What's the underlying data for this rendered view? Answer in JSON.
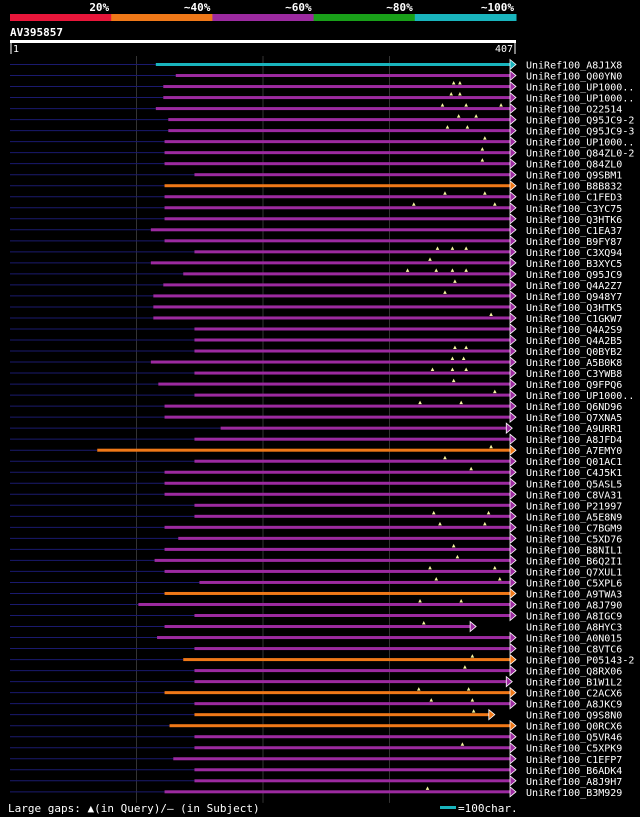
{
  "chart_data": {
    "type": "bar",
    "title": "AV395857",
    "query_start": "1",
    "query_end": "407",
    "query_length": 407,
    "color_legend": [
      {
        "label": "20%",
        "color": "#e8163a"
      },
      {
        "label": "~40%",
        "color": "#ef7818"
      },
      {
        "label": "~60%",
        "color": "#9c2aa0"
      },
      {
        "label": "~80%",
        "color": "#19a019"
      },
      {
        "label": "~100%",
        "color": "#19b4bd"
      }
    ],
    "footer": {
      "gaps_label": "Large gaps: ▲(in Query)/– (in Subject)",
      "scale_label": "=100char."
    },
    "hits": [
      {
        "name": "UniRef100_A8J1X8",
        "start": 118,
        "end": 407,
        "color": "#19b4bd",
        "gaps": []
      },
      {
        "name": "UniRef100_Q00YN0",
        "start": 134,
        "end": 407,
        "color": "#9c2aa0",
        "gaps": []
      },
      {
        "name": "UniRef100_UP1000..",
        "start": 124,
        "end": 407,
        "color": "#9c2aa0",
        "gaps": [
          357,
          362
        ]
      },
      {
        "name": "UniRef100_UP1000..",
        "start": 124,
        "end": 407,
        "color": "#9c2aa0",
        "gaps": [
          355,
          362
        ]
      },
      {
        "name": "UniRef100_O22514",
        "start": 118,
        "end": 407,
        "color": "#9c2aa0",
        "gaps": [
          348,
          367,
          395
        ]
      },
      {
        "name": "UniRef100_Q95JC9-2",
        "start": 128,
        "end": 407,
        "color": "#9c2aa0",
        "gaps": [
          361,
          375
        ]
      },
      {
        "name": "UniRef100_Q95JC9-3",
        "start": 128,
        "end": 407,
        "color": "#9c2aa0",
        "gaps": [
          352,
          368
        ]
      },
      {
        "name": "UniRef100_UP1000..",
        "start": 125,
        "end": 407,
        "color": "#9c2aa0",
        "gaps": [
          382
        ]
      },
      {
        "name": "UniRef100_Q84ZL0-2",
        "start": 125,
        "end": 407,
        "color": "#9c2aa0",
        "gaps": [
          380
        ]
      },
      {
        "name": "UniRef100_Q84ZL0",
        "start": 125,
        "end": 407,
        "color": "#9c2aa0",
        "gaps": [
          380
        ]
      },
      {
        "name": "UniRef100_Q9SBM1",
        "start": 149,
        "end": 407,
        "color": "#9c2aa0",
        "gaps": []
      },
      {
        "name": "UniRef100_B8B832",
        "start": 125,
        "end": 407,
        "color": "#ef7818",
        "gaps": []
      },
      {
        "name": "UniRef100_C1FED3",
        "start": 125,
        "end": 407,
        "color": "#9c2aa0",
        "gaps": [
          350,
          382
        ]
      },
      {
        "name": "UniRef100_C3YC75",
        "start": 125,
        "end": 407,
        "color": "#9c2aa0",
        "gaps": [
          325,
          390
        ]
      },
      {
        "name": "UniRef100_Q3HTK6",
        "start": 125,
        "end": 407,
        "color": "#9c2aa0",
        "gaps": []
      },
      {
        "name": "UniRef100_C1EA37",
        "start": 114,
        "end": 407,
        "color": "#9c2aa0",
        "gaps": []
      },
      {
        "name": "UniRef100_B9FY87",
        "start": 125,
        "end": 407,
        "color": "#9c2aa0",
        "gaps": []
      },
      {
        "name": "UniRef100_C3XQ94",
        "start": 149,
        "end": 407,
        "color": "#9c2aa0",
        "gaps": [
          344,
          356,
          367
        ]
      },
      {
        "name": "UniRef100_B3XYC5",
        "start": 114,
        "end": 407,
        "color": "#9c2aa0",
        "gaps": [
          338
        ]
      },
      {
        "name": "UniRef100_Q95JC9",
        "start": 140,
        "end": 407,
        "color": "#9c2aa0",
        "gaps": [
          320,
          343,
          356,
          367
        ]
      },
      {
        "name": "UniRef100_Q4A2Z7",
        "start": 124,
        "end": 407,
        "color": "#9c2aa0",
        "gaps": [
          358
        ]
      },
      {
        "name": "UniRef100_Q948Y7",
        "start": 116,
        "end": 407,
        "color": "#9c2aa0",
        "gaps": [
          350
        ]
      },
      {
        "name": "UniRef100_Q3HTK5",
        "start": 116,
        "end": 407,
        "color": "#9c2aa0",
        "gaps": []
      },
      {
        "name": "UniRef100_C1GKW7",
        "start": 116,
        "end": 407,
        "color": "#9c2aa0",
        "gaps": [
          387
        ]
      },
      {
        "name": "UniRef100_Q4A2S9",
        "start": 149,
        "end": 407,
        "color": "#9c2aa0",
        "gaps": []
      },
      {
        "name": "UniRef100_Q4A2B5",
        "start": 149,
        "end": 407,
        "color": "#9c2aa0",
        "gaps": []
      },
      {
        "name": "UniRef100_Q0BYB2",
        "start": 149,
        "end": 407,
        "color": "#9c2aa0",
        "gaps": [
          358,
          367
        ]
      },
      {
        "name": "UniRef100_A5B0K8",
        "start": 114,
        "end": 407,
        "color": "#9c2aa0",
        "gaps": [
          356,
          365
        ]
      },
      {
        "name": "UniRef100_C3YWB8",
        "start": 149,
        "end": 407,
        "color": "#9c2aa0",
        "gaps": [
          340,
          356,
          367
        ]
      },
      {
        "name": "UniRef100_Q9FPQ6",
        "start": 120,
        "end": 407,
        "color": "#9c2aa0",
        "gaps": [
          357
        ]
      },
      {
        "name": "UniRef100_UP1000..",
        "start": 149,
        "end": 407,
        "color": "#9c2aa0",
        "gaps": [
          390
        ]
      },
      {
        "name": "UniRef100_Q6ND96",
        "start": 125,
        "end": 407,
        "color": "#9c2aa0",
        "gaps": [
          330,
          363
        ]
      },
      {
        "name": "UniRef100_Q7XNA5",
        "start": 125,
        "end": 407,
        "color": "#9c2aa0",
        "gaps": []
      },
      {
        "name": "UniRef100_A9URR1",
        "start": 170,
        "end": 404,
        "color": "#9c2aa0",
        "gaps": []
      },
      {
        "name": "UniRef100_A8JFD4",
        "start": 149,
        "end": 407,
        "color": "#9c2aa0",
        "gaps": []
      },
      {
        "name": "UniRef100_A7EMY0",
        "start": 71,
        "end": 407,
        "color": "#ef7818",
        "gaps": [
          387
        ]
      },
      {
        "name": "UniRef100_Q01AC1",
        "start": 149,
        "end": 407,
        "color": "#9c2aa0",
        "gaps": [
          350
        ]
      },
      {
        "name": "UniRef100_C4J5K1",
        "start": 125,
        "end": 407,
        "color": "#9c2aa0",
        "gaps": [
          371
        ]
      },
      {
        "name": "UniRef100_Q5ASL5",
        "start": 125,
        "end": 407,
        "color": "#9c2aa0",
        "gaps": []
      },
      {
        "name": "UniRef100_C8VA31",
        "start": 125,
        "end": 407,
        "color": "#9c2aa0",
        "gaps": []
      },
      {
        "name": "UniRef100_P21997",
        "start": 149,
        "end": 407,
        "color": "#9c2aa0",
        "gaps": []
      },
      {
        "name": "UniRef100_A5E8N9",
        "start": 149,
        "end": 407,
        "color": "#9c2aa0",
        "gaps": [
          341,
          385
        ]
      },
      {
        "name": "UniRef100_C7BGM9",
        "start": 125,
        "end": 407,
        "color": "#9c2aa0",
        "gaps": [
          346,
          382
        ]
      },
      {
        "name": "UniRef100_C5XD76",
        "start": 136,
        "end": 407,
        "color": "#9c2aa0",
        "gaps": []
      },
      {
        "name": "UniRef100_B8NIL1",
        "start": 125,
        "end": 407,
        "color": "#9c2aa0",
        "gaps": [
          357
        ]
      },
      {
        "name": "UniRef100_B6Q2I1",
        "start": 117,
        "end": 407,
        "color": "#9c2aa0",
        "gaps": [
          360
        ]
      },
      {
        "name": "UniRef100_Q7XUL1",
        "start": 125,
        "end": 407,
        "color": "#9c2aa0",
        "gaps": [
          338,
          390
        ]
      },
      {
        "name": "UniRef100_C5XPL6",
        "start": 153,
        "end": 407,
        "color": "#9c2aa0",
        "gaps": [
          343,
          394
        ]
      },
      {
        "name": "UniRef100_A9TWA3",
        "start": 125,
        "end": 407,
        "color": "#ef7818",
        "gaps": []
      },
      {
        "name": "UniRef100_A8J790",
        "start": 104,
        "end": 407,
        "color": "#9c2aa0",
        "gaps": [
          330,
          363
        ]
      },
      {
        "name": "UniRef100_A8IGC9",
        "start": 149,
        "end": 407,
        "color": "#9c2aa0",
        "gaps": []
      },
      {
        "name": "UniRef100_A8HYC3",
        "start": 125,
        "end": 375,
        "color": "#9c2aa0",
        "gaps": [
          333
        ]
      },
      {
        "name": "UniRef100_A0N015",
        "start": 119,
        "end": 407,
        "color": "#9c2aa0",
        "gaps": []
      },
      {
        "name": "UniRef100_C8VTC6",
        "start": 149,
        "end": 407,
        "color": "#9c2aa0",
        "gaps": []
      },
      {
        "name": "UniRef100_P05143-2",
        "start": 140,
        "end": 407,
        "color": "#ef7818",
        "gaps": [
          372
        ]
      },
      {
        "name": "UniRef100_Q8RX06",
        "start": 149,
        "end": 407,
        "color": "#9c2aa0",
        "gaps": [
          366
        ]
      },
      {
        "name": "UniRef100_B1W1L2",
        "start": 149,
        "end": 404,
        "color": "#9c2aa0",
        "gaps": []
      },
      {
        "name": "UniRef100_C2ACX6",
        "start": 125,
        "end": 407,
        "color": "#ef7818",
        "gaps": [
          329,
          369
        ]
      },
      {
        "name": "UniRef100_A8JKC9",
        "start": 149,
        "end": 407,
        "color": "#9c2aa0",
        "gaps": [
          339,
          372
        ]
      },
      {
        "name": "UniRef100_Q9S8N0",
        "start": 149,
        "end": 390,
        "color": "#ef7818",
        "gaps": [
          373
        ]
      },
      {
        "name": "UniRef100_Q0RCX6",
        "start": 129,
        "end": 407,
        "color": "#ef7818",
        "gaps": []
      },
      {
        "name": "UniRef100_Q5VR46",
        "start": 149,
        "end": 407,
        "color": "#9c2aa0",
        "gaps": []
      },
      {
        "name": "UniRef100_C5XPK9",
        "start": 149,
        "end": 407,
        "color": "#9c2aa0",
        "gaps": [
          364
        ]
      },
      {
        "name": "UniRef100_C1EFP7",
        "start": 132,
        "end": 407,
        "color": "#9c2aa0",
        "gaps": []
      },
      {
        "name": "UniRef100_B6ADK4",
        "start": 149,
        "end": 407,
        "color": "#9c2aa0",
        "gaps": []
      },
      {
        "name": "UniRef100_A8J9H7",
        "start": 149,
        "end": 407,
        "color": "#9c2aa0",
        "gaps": []
      },
      {
        "name": "UniRef100_B3M929",
        "start": 125,
        "end": 407,
        "color": "#9c2aa0",
        "gaps": [
          336
        ]
      }
    ]
  }
}
